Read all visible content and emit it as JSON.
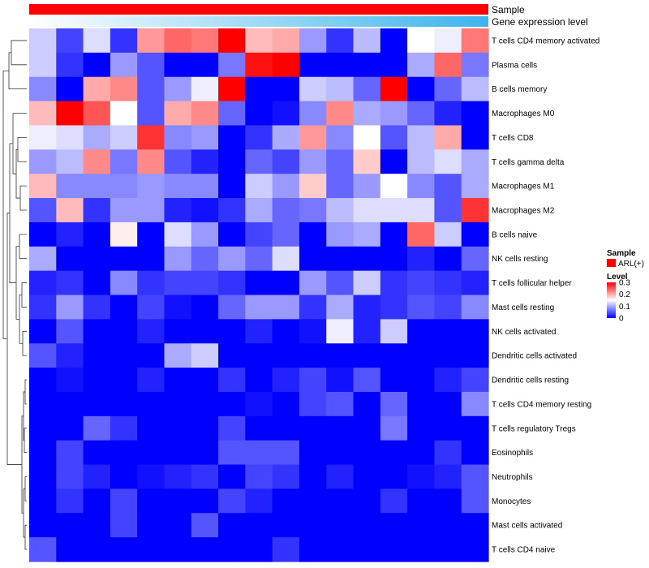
{
  "chart_data": {
    "type": "heatmap",
    "title": "",
    "annotation_tracks": [
      {
        "label": "Sample",
        "color": "#ff0000"
      },
      {
        "label": "Gene expression level",
        "color_low": "#ffffff",
        "color_high": "#3cb4ec"
      }
    ],
    "rows": [
      "T cells CD4 memory activated",
      "Plasma cells",
      "B cells memory",
      "Macrophages M0",
      "T cells CD8",
      "T cells gamma delta",
      "Macrophages M1",
      "Macrophages M2",
      "B cells naive",
      "NK cells resting",
      "T cells follicular helper",
      "Mast cells resting",
      "NK cells activated",
      "Dendritic cells activated",
      "Dendritic cells resting",
      "T cells CD4 memory resting",
      "T cells regulatory  Tregs",
      "Eosinophils",
      "Neutrophils",
      "Monocytes",
      "Mast cells activated",
      "T cells CD4 naive"
    ],
    "n_columns": 17,
    "values": [
      [
        0.12,
        0.04,
        0.13,
        0.03,
        0.21,
        0.24,
        0.23,
        0.3,
        0.19,
        0.2,
        0.09,
        0.03,
        0.11,
        0.0,
        0.15,
        0.14,
        0.23
      ],
      [
        0.12,
        0.03,
        0.0,
        0.09,
        0.05,
        0.0,
        0.0,
        0.07,
        0.29,
        0.3,
        0.0,
        0.0,
        0.0,
        0.0,
        0.1,
        0.24,
        0.07
      ],
      [
        0.08,
        0.0,
        0.2,
        0.22,
        0.05,
        0.09,
        0.14,
        0.3,
        0.0,
        0.0,
        0.12,
        0.11,
        0.06,
        0.3,
        0.0,
        0.06,
        0.11
      ],
      [
        0.19,
        0.3,
        0.25,
        0.15,
        0.05,
        0.2,
        0.22,
        0.06,
        0.0,
        0.01,
        0.08,
        0.22,
        0.1,
        0.09,
        0.06,
        0.02,
        0.0
      ],
      [
        0.14,
        0.13,
        0.1,
        0.12,
        0.27,
        0.08,
        0.09,
        0.0,
        0.03,
        0.1,
        0.21,
        0.08,
        0.15,
        0.05,
        0.11,
        0.2,
        0.0
      ],
      [
        0.09,
        0.11,
        0.22,
        0.07,
        0.22,
        0.05,
        0.02,
        0.0,
        0.06,
        0.04,
        0.09,
        0.06,
        0.18,
        0.0,
        0.11,
        0.13,
        0.1
      ],
      [
        0.19,
        0.08,
        0.08,
        0.08,
        0.09,
        0.08,
        0.08,
        0.0,
        0.12,
        0.09,
        0.18,
        0.06,
        0.09,
        0.15,
        0.08,
        0.05,
        0.1
      ],
      [
        0.05,
        0.19,
        0.03,
        0.09,
        0.09,
        0.02,
        0.01,
        0.03,
        0.1,
        0.06,
        0.07,
        0.11,
        0.13,
        0.13,
        0.13,
        0.05,
        0.27
      ],
      [
        0.0,
        0.02,
        0.0,
        0.16,
        0.0,
        0.13,
        0.09,
        0.0,
        0.04,
        0.06,
        0.0,
        0.09,
        0.1,
        0.0,
        0.24,
        0.12,
        0.0
      ],
      [
        0.1,
        0.0,
        0.0,
        0.0,
        0.0,
        0.09,
        0.06,
        0.09,
        0.06,
        0.13,
        0.0,
        0.0,
        0.0,
        0.0,
        0.02,
        0.0,
        0.06
      ],
      [
        0.02,
        0.03,
        0.0,
        0.08,
        0.03,
        0.04,
        0.04,
        0.03,
        0.0,
        0.0,
        0.09,
        0.05,
        0.12,
        0.03,
        0.04,
        0.03,
        0.02
      ],
      [
        0.03,
        0.09,
        0.03,
        0.0,
        0.04,
        0.01,
        0.0,
        0.06,
        0.09,
        0.09,
        0.03,
        0.1,
        0.02,
        0.03,
        0.05,
        0.04,
        0.08
      ],
      [
        0.0,
        0.05,
        0.0,
        0.0,
        0.02,
        0.0,
        0.0,
        0.0,
        0.02,
        0.0,
        0.01,
        0.14,
        0.02,
        0.12,
        0.0,
        0.0,
        0.0
      ],
      [
        0.05,
        0.02,
        0.0,
        0.0,
        0.0,
        0.1,
        0.12,
        0.0,
        0.0,
        0.0,
        0.0,
        0.0,
        0.0,
        0.0,
        0.0,
        0.0,
        0.0
      ],
      [
        0.0,
        0.01,
        0.0,
        0.0,
        0.02,
        0.0,
        0.0,
        0.03,
        0.0,
        0.02,
        0.04,
        0.01,
        0.05,
        0.0,
        0.0,
        0.02,
        0.04
      ],
      [
        0.0,
        0.0,
        0.0,
        0.0,
        0.0,
        0.0,
        0.0,
        0.0,
        0.01,
        0.0,
        0.04,
        0.05,
        0.0,
        0.06,
        0.0,
        0.0,
        0.08
      ],
      [
        0.0,
        0.0,
        0.06,
        0.03,
        0.0,
        0.0,
        0.0,
        0.04,
        0.0,
        0.0,
        0.0,
        0.0,
        0.0,
        0.07,
        0.0,
        0.0,
        0.0
      ],
      [
        0.0,
        0.04,
        0.0,
        0.0,
        0.0,
        0.0,
        0.0,
        0.05,
        0.05,
        0.05,
        0.0,
        0.0,
        0.0,
        0.0,
        0.0,
        0.03,
        0.0
      ],
      [
        0.0,
        0.04,
        0.02,
        0.0,
        0.01,
        0.02,
        0.03,
        0.0,
        0.04,
        0.03,
        0.0,
        0.02,
        0.0,
        0.0,
        0.01,
        0.02,
        0.05
      ],
      [
        0.0,
        0.03,
        0.0,
        0.04,
        0.0,
        0.0,
        0.0,
        0.04,
        0.02,
        0.0,
        0.0,
        0.0,
        0.0,
        0.03,
        0.0,
        0.0,
        0.05
      ],
      [
        0.0,
        0.0,
        0.0,
        0.04,
        0.0,
        0.0,
        0.05,
        0.0,
        0.0,
        0.0,
        0.0,
        0.0,
        0.0,
        0.0,
        0.0,
        0.0,
        0.0
      ],
      [
        0.05,
        0.0,
        0.0,
        0.0,
        0.0,
        0.0,
        0.0,
        0.0,
        0.0,
        0.03,
        0.0,
        0.0,
        0.0,
        0.0,
        0.0,
        0.0,
        0.0
      ]
    ],
    "color_scale": {
      "low": "#0000ff",
      "mid": "#ffffff",
      "high": "#ff0000",
      "min": 0,
      "mid_value": 0.15,
      "max": 0.3
    },
    "legends": [
      {
        "title": "Sample",
        "items": [
          {
            "label": "ARL(+)",
            "color": "#ff0000"
          }
        ]
      },
      {
        "title": "Level",
        "ticks": [
          "0.3",
          "0.2",
          "0.1",
          "0"
        ],
        "tick_values": [
          0.3,
          0.2,
          0.1,
          0
        ]
      }
    ],
    "dendrogram": "rows",
    "legend_position": "right"
  }
}
